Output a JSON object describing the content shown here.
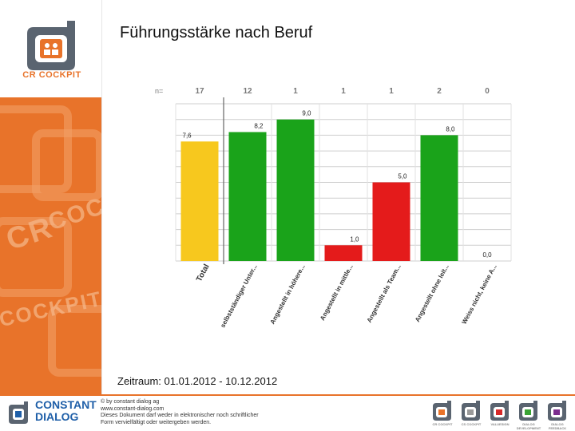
{
  "page": {
    "title": "Führungsstärke nach Beruf",
    "period": "Zeitraum: 01.01.2012 - 10.12.2012"
  },
  "logo": {
    "caption": "CR COCKPIT"
  },
  "footer": {
    "company_line1": "CONSTANT",
    "company_line2": "DIALOG",
    "text_lines": [
      "© by constant dialog ag",
      "www.constant-dialog.com",
      "Dieses Dokument darf weder in elektronischer noch schriftlicher",
      "Form vervielfältigt oder weitergeben werden."
    ],
    "brands": [
      "CR COCKPIT",
      "CS COCKPIT",
      "VALUESIGN",
      "DIALOG DEVELOPMENT",
      "DIALOG FEEDBACK"
    ],
    "brand_colors": [
      "#e8732a",
      "#9a9a9a",
      "#d62828",
      "#3aa335",
      "#7b2d8e"
    ]
  },
  "sidebar_deco_text": [
    "CR",
    "COC",
    "COCKPIT"
  ],
  "chart_data": {
    "type": "bar",
    "title": "Führungsstärke nach Beruf",
    "n_label": "n=",
    "categories": [
      "Total",
      "selbstständiger Unter...",
      "Angestellt in höhere...",
      "Angestellt in mittle...",
      "Angestellt als Team...",
      "Angestellt ohne leit...",
      "Weiss nicht, keine A..."
    ],
    "n_values": [
      "17",
      "12",
      "1",
      "1",
      "1",
      "2",
      "0"
    ],
    "values": [
      7.6,
      8.2,
      9.0,
      1.0,
      5.0,
      8.0,
      0.0
    ],
    "value_labels": [
      "7,6",
      "8,2",
      "9,0",
      "1,0",
      "5,0",
      "8,0",
      "0,0"
    ],
    "colors": [
      "#f7c81e",
      "#1aa31a",
      "#1aa31a",
      "#e41b1b",
      "#e41b1b",
      "#1aa31a",
      "#1aa31a"
    ],
    "ylim": [
      0,
      10
    ],
    "grid": true,
    "xlabel": "",
    "ylabel": ""
  }
}
